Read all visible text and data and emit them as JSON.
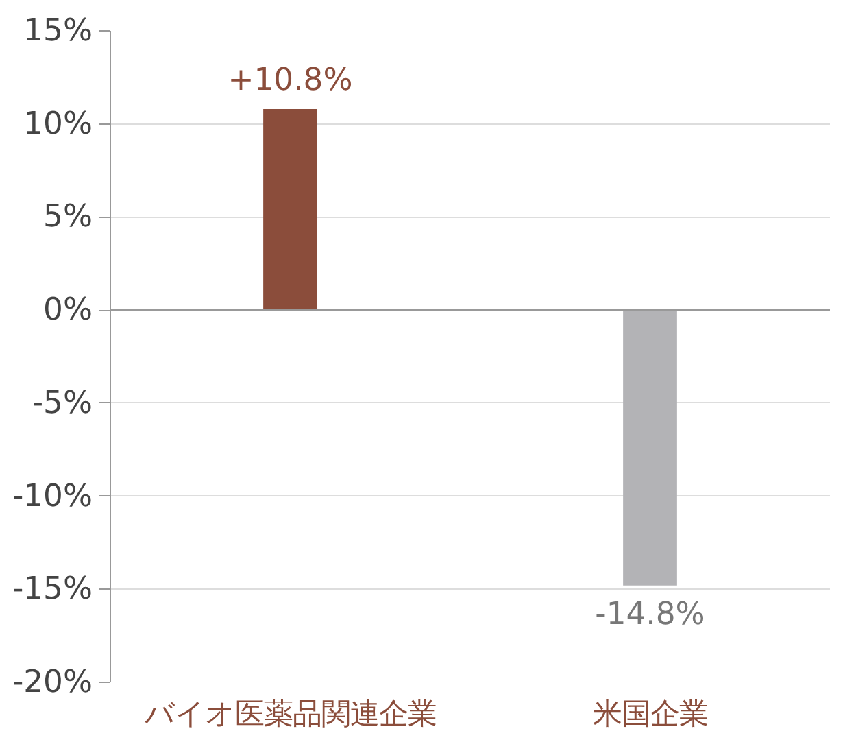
{
  "chart_data": {
    "type": "bar",
    "categories": [
      "バイオ医薬品関連企業",
      "米国企業"
    ],
    "values": [
      10.8,
      -14.8
    ],
    "colors": [
      "#8b4d3b",
      "#b3b3b6"
    ],
    "value_labels": [
      "+10.8%",
      "-14.8%"
    ],
    "ylim": [
      -20,
      15
    ],
    "yticks": [
      {
        "value": 15,
        "label": "15%"
      },
      {
        "value": 10,
        "label": "10%"
      },
      {
        "value": 5,
        "label": "5%"
      },
      {
        "value": 0,
        "label": "0%"
      },
      {
        "value": -5,
        "label": "-5%"
      },
      {
        "value": -10,
        "label": "-10%"
      },
      {
        "value": -15,
        "label": "-15%"
      },
      {
        "value": -20,
        "label": "-20%"
      }
    ],
    "grid": "y"
  }
}
